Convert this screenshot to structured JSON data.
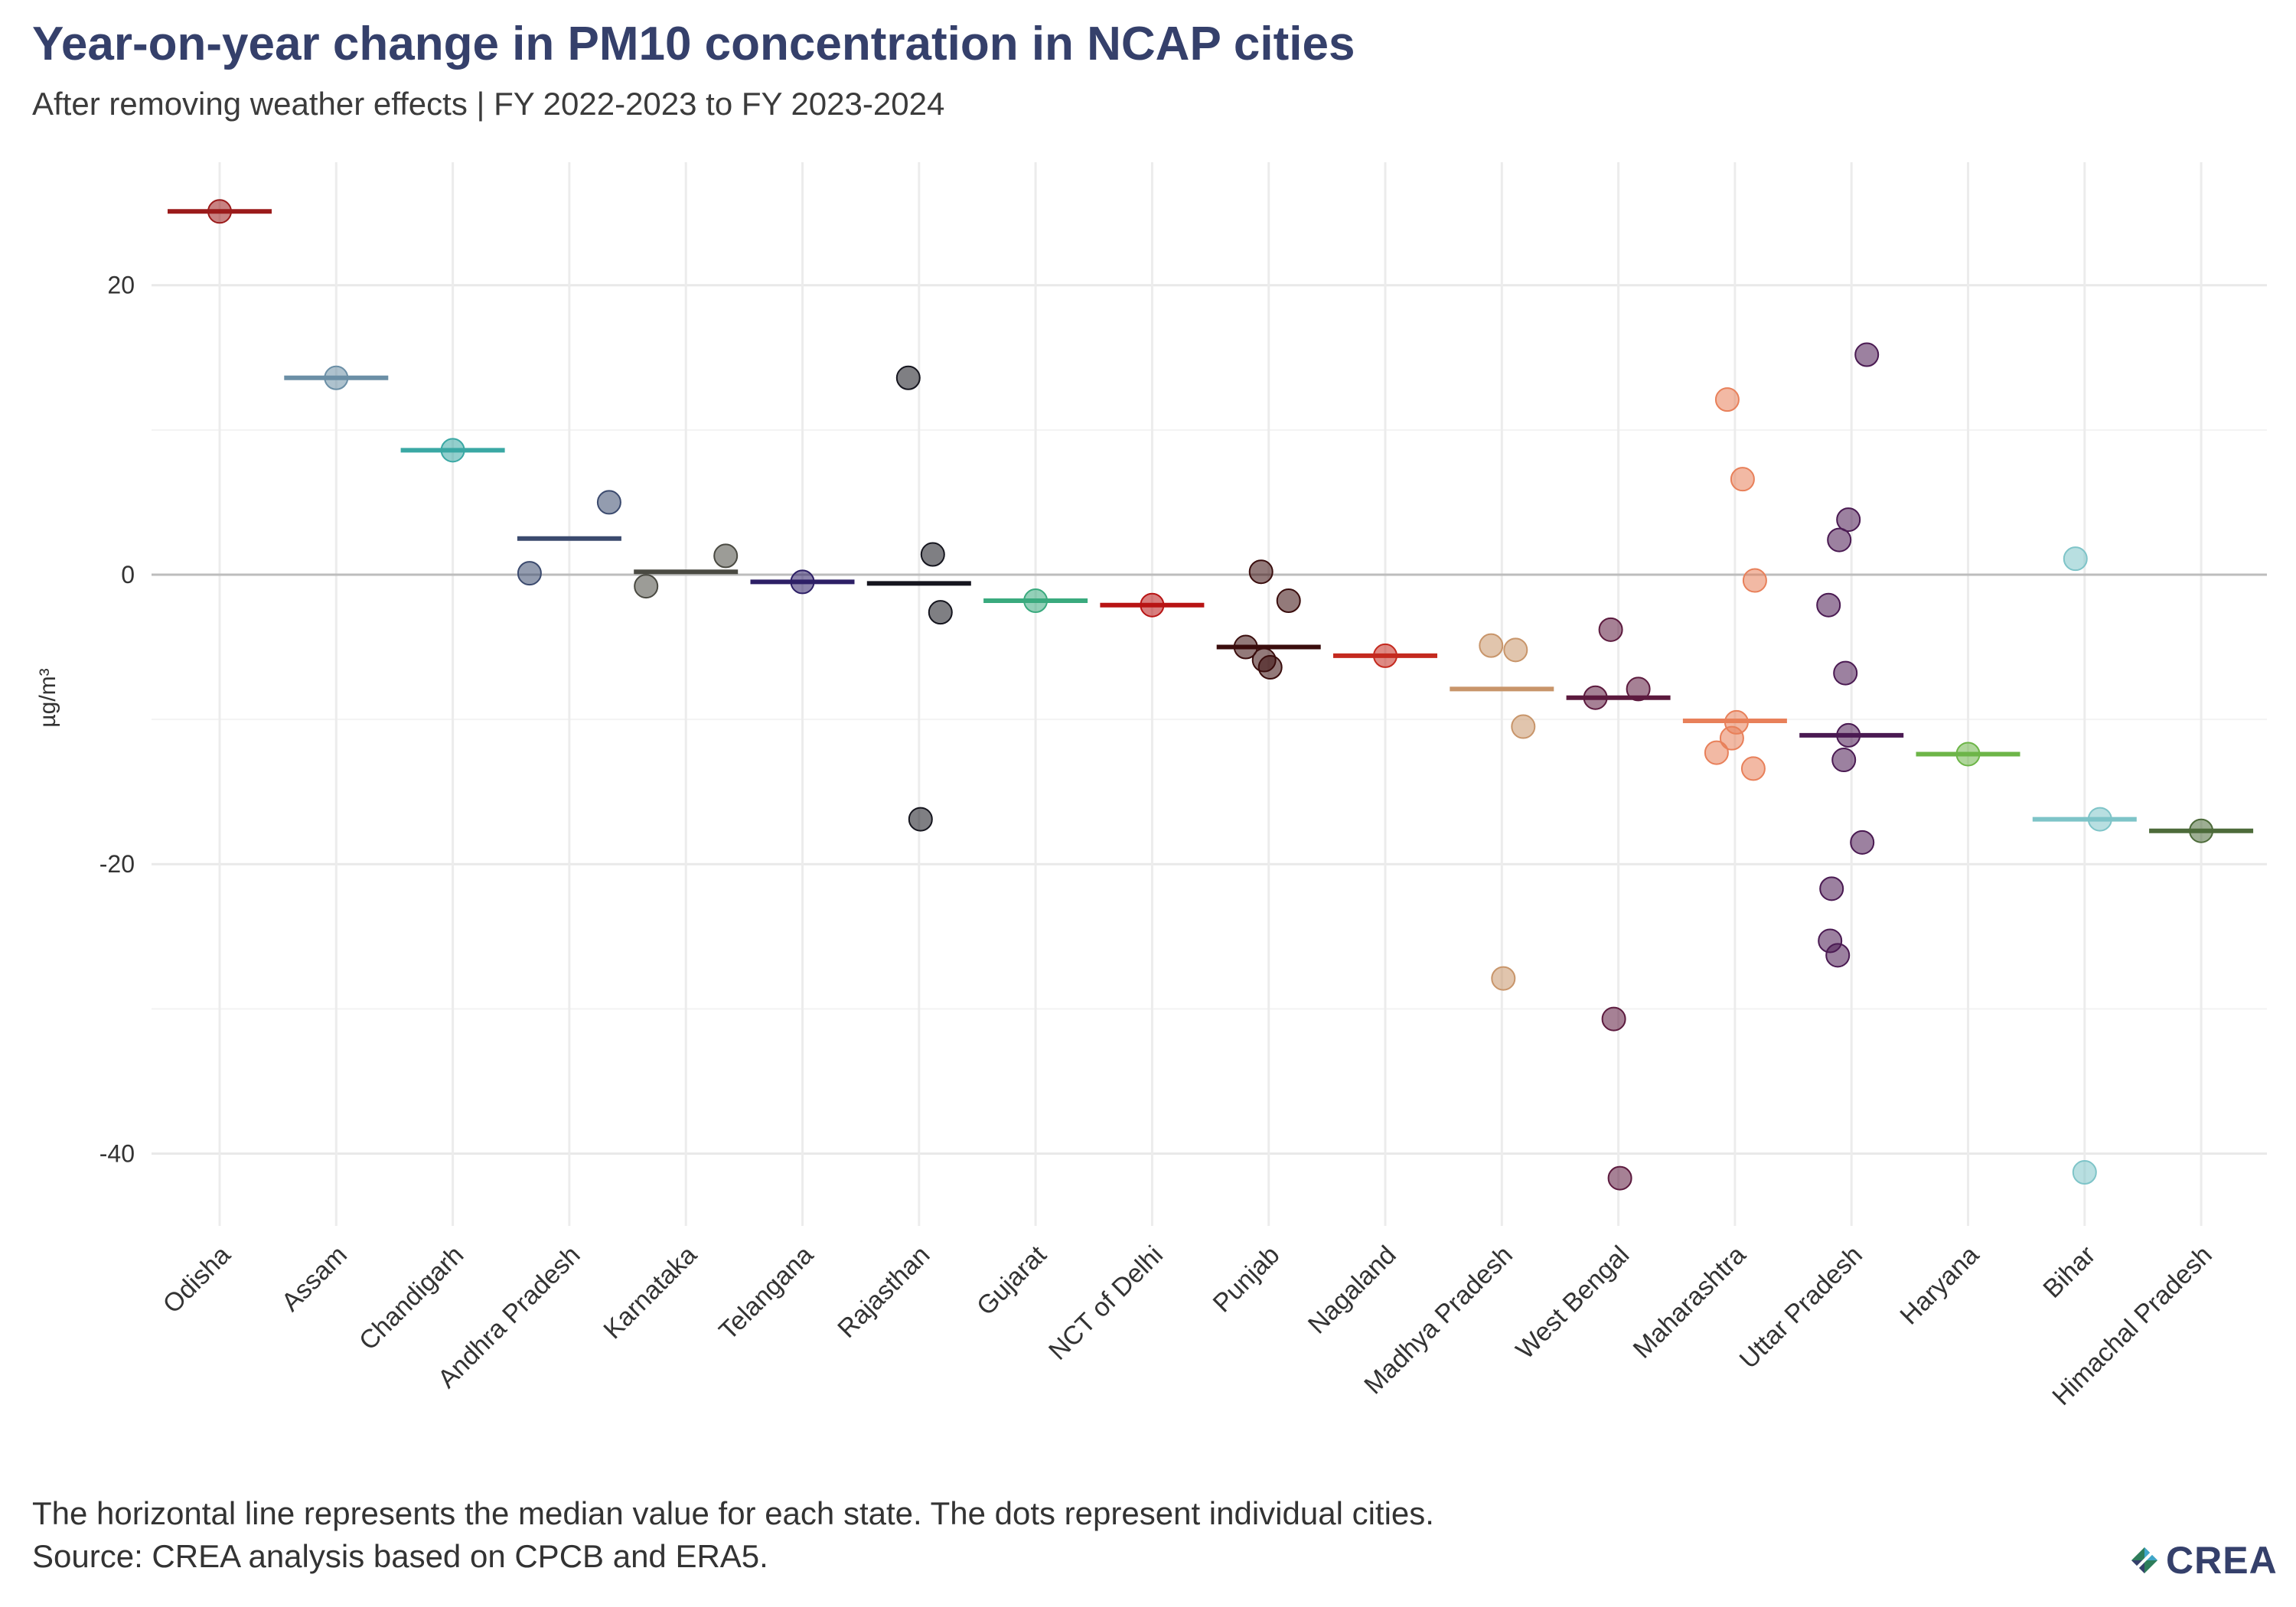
{
  "title": "Year-on-year change in PM10 concentration in NCAP cities",
  "subtitle": "After removing weather effects | FY 2022-2023 to FY 2023-2024",
  "footnote_line1": "The horizontal line represents the median value for each state. The dots represent individual cities.",
  "footnote_line2": "Source: CREA analysis based on CPCB and ERA5.",
  "logo_text": "CREA",
  "chart_data": {
    "type": "scatter",
    "title": "Year-on-year change in PM10 concentration in NCAP cities",
    "subtitle": "After removing weather effects | FY 2022-2023 to FY 2023-2024",
    "xlabel": "",
    "ylabel": "µg/m³",
    "ylim": [
      -45,
      28.5
    ],
    "yticks": [
      20,
      0,
      -20,
      -40
    ],
    "grid": true,
    "zero_line": true,
    "categories": [
      "Odisha",
      "Assam",
      "Chandigarh",
      "Andhra Pradesh",
      "Karnataka",
      "Telangana",
      "Rajasthan",
      "Gujarat",
      "NCT of Delhi",
      "Punjab",
      "Nagaland",
      "Madhya Pradesh",
      "West Bengal",
      "Maharashtra",
      "Uttar Pradesh",
      "Haryana",
      "Bihar",
      "Himachal Pradesh"
    ],
    "series": [
      {
        "category": "Odisha",
        "median": 25.1,
        "color": "#9b1b1b",
        "values": [
          25.1
        ]
      },
      {
        "category": "Assam",
        "median": 13.6,
        "color": "#6b8fa6",
        "values": [
          13.6
        ]
      },
      {
        "category": "Chandigarh",
        "median": 8.6,
        "color": "#3aa8a4",
        "values": [
          8.6
        ]
      },
      {
        "category": "Andhra Pradesh",
        "median": 2.5,
        "color": "#3b4a6e",
        "values": [
          5.0,
          0.1
        ]
      },
      {
        "category": "Karnataka",
        "median": 0.2,
        "color": "#4a4a42",
        "values": [
          1.3,
          -0.8
        ]
      },
      {
        "category": "Telangana",
        "median": -0.5,
        "color": "#2d1f66",
        "values": [
          -0.5
        ]
      },
      {
        "category": "Rajasthan",
        "median": -0.6,
        "color": "#15151e",
        "values": [
          13.6,
          1.4,
          -2.6,
          -16.9
        ]
      },
      {
        "category": "Gujarat",
        "median": -1.8,
        "color": "#3aaa7e",
        "values": [
          -1.8
        ]
      },
      {
        "category": "NCT of Delhi",
        "median": -2.1,
        "color": "#b81414",
        "values": [
          -2.1
        ]
      },
      {
        "category": "Punjab",
        "median": -5.0,
        "color": "#3a0d0d",
        "values": [
          0.2,
          -1.8,
          -5.0,
          -5.9,
          -6.4
        ]
      },
      {
        "category": "Nagaland",
        "median": -5.6,
        "color": "#c42a1f",
        "values": [
          -5.6
        ]
      },
      {
        "category": "Madhya Pradesh",
        "median": -7.9,
        "color": "#c8956a",
        "values": [
          -4.9,
          -5.2,
          -10.5,
          -27.9
        ]
      },
      {
        "category": "West Bengal",
        "median": -8.5,
        "color": "#5c1a3e",
        "values": [
          -3.8,
          -7.9,
          -8.5,
          -30.7,
          -41.7
        ]
      },
      {
        "category": "Maharashtra",
        "median": -10.1,
        "color": "#e8805a",
        "values": [
          12.1,
          6.6,
          -0.4,
          -10.2,
          -11.3,
          -12.3,
          -13.4
        ]
      },
      {
        "category": "Uttar Pradesh",
        "median": -11.1,
        "color": "#4a1a52",
        "values": [
          15.2,
          3.8,
          2.4,
          -2.1,
          -6.8,
          -11.1,
          -12.8,
          -18.5,
          -21.7,
          -25.3,
          -26.3
        ]
      },
      {
        "category": "Haryana",
        "median": -12.4,
        "color": "#6db548",
        "values": [
          -12.4
        ]
      },
      {
        "category": "Bihar",
        "median": -16.9,
        "color": "#7ec4c8",
        "values": [
          1.1,
          -16.9,
          -41.3
        ]
      },
      {
        "category": "Himachal Pradesh",
        "median": -17.7,
        "color": "#4d6b3a",
        "values": [
          -17.7
        ]
      }
    ]
  }
}
